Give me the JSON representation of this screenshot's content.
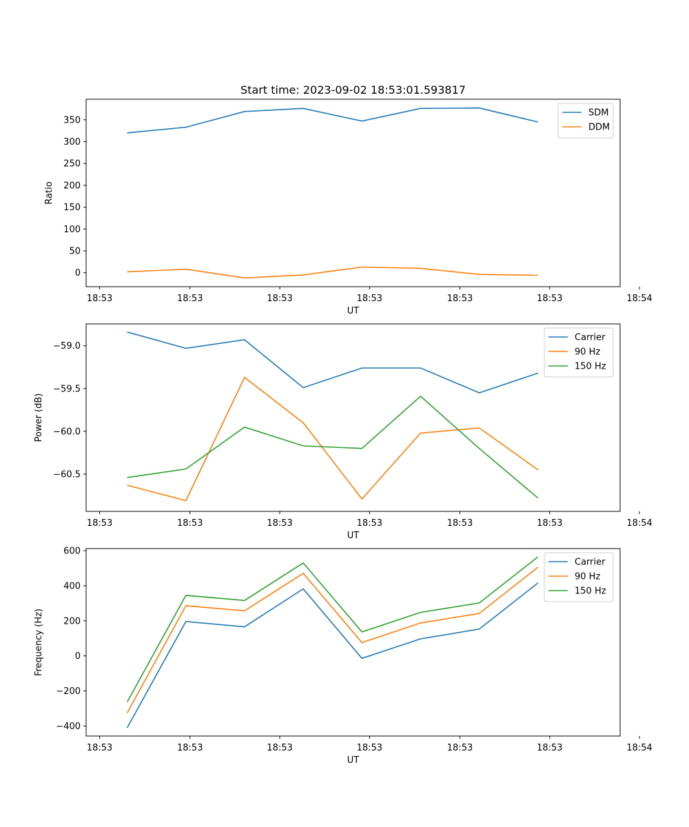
{
  "chart_data": [
    {
      "type": "line",
      "title": "Start time: 2023-09-02 18:53:01.593817",
      "xlabel": "UT",
      "ylabel": "Ratio",
      "x": [
        1,
        2,
        3,
        4,
        5,
        6,
        7,
        8
      ],
      "xlim": [
        0.3,
        9.4
      ],
      "x_ticks": [
        0.53,
        2.07,
        3.6,
        5.13,
        6.67,
        8.2,
        9.73
      ],
      "x_tick_labels": [
        "18:53",
        "18:53",
        "18:53",
        "18:53",
        "18:53",
        "18:53",
        "18:54"
      ],
      "ylim": [
        -32,
        397
      ],
      "y_ticks": [
        0,
        50,
        100,
        150,
        200,
        250,
        300,
        350
      ],
      "y_tick_labels": [
        "0",
        "50",
        "100",
        "150",
        "200",
        "250",
        "300",
        "350"
      ],
      "legend": "top-right",
      "series": [
        {
          "name": "SDM",
          "color": "#1f77b4",
          "values": [
            320,
            333,
            369,
            376,
            347,
            376,
            377,
            345
          ]
        },
        {
          "name": "DDM",
          "color": "#ff7f0e",
          "values": [
            2,
            8,
            -12,
            -5,
            13,
            10,
            -4,
            -6
          ]
        }
      ]
    },
    {
      "type": "line",
      "title": "",
      "xlabel": "UT",
      "ylabel": "Power (dB)",
      "x": [
        1,
        2,
        3,
        4,
        5,
        6,
        7,
        8
      ],
      "xlim": [
        0.3,
        9.4
      ],
      "x_ticks": [
        0.53,
        2.07,
        3.6,
        5.13,
        6.67,
        8.2,
        9.73
      ],
      "x_tick_labels": [
        "18:53",
        "18:53",
        "18:53",
        "18:53",
        "18:53",
        "18:53",
        "18:54"
      ],
      "ylim": [
        -60.935,
        -58.745
      ],
      "y_ticks": [
        -59.0,
        -59.5,
        -60.0,
        -60.5
      ],
      "y_tick_labels": [
        "−59.0",
        "−59.5",
        "−60.0",
        "−60.5"
      ],
      "legend": "top-right",
      "series": [
        {
          "name": "Carrier",
          "color": "#1f77b4",
          "values": [
            -58.84,
            -59.03,
            -58.93,
            -59.49,
            -59.26,
            -59.26,
            -59.55,
            -59.32
          ]
        },
        {
          "name": "90 Hz",
          "color": "#ff7f0e",
          "values": [
            -60.63,
            -60.81,
            -59.37,
            -59.9,
            -60.79,
            -60.02,
            -59.96,
            -60.45
          ]
        },
        {
          "name": "150 Hz",
          "color": "#2ca02c",
          "values": [
            -60.54,
            -60.44,
            -59.95,
            -60.17,
            -60.2,
            -59.59,
            -60.2,
            -60.78
          ]
        }
      ]
    },
    {
      "type": "line",
      "title": "",
      "xlabel": "UT",
      "ylabel": "Frequency (Hz)",
      "x": [
        1,
        2,
        3,
        4,
        5,
        6,
        7,
        8
      ],
      "xlim": [
        0.3,
        9.4
      ],
      "x_ticks": [
        0.53,
        2.07,
        3.6,
        5.13,
        6.67,
        8.2,
        9.73
      ],
      "x_tick_labels": [
        "18:53",
        "18:53",
        "18:53",
        "18:53",
        "18:53",
        "18:53",
        "18:54"
      ],
      "ylim": [
        -457,
        612
      ],
      "y_ticks": [
        -400,
        -200,
        0,
        200,
        400,
        600
      ],
      "y_tick_labels": [
        "−400",
        "−200",
        "0",
        "200",
        "400",
        "600"
      ],
      "legend": "top-right",
      "series": [
        {
          "name": "Carrier",
          "color": "#1f77b4",
          "values": [
            -410,
            196,
            166,
            382,
            -14,
            97,
            153,
            416
          ]
        },
        {
          "name": "90 Hz",
          "color": "#ff7f0e",
          "values": [
            -325,
            286,
            257,
            471,
            76,
            188,
            242,
            506
          ]
        },
        {
          "name": "150 Hz",
          "color": "#2ca02c",
          "values": [
            -263,
            345,
            316,
            530,
            137,
            248,
            302,
            565
          ]
        }
      ]
    }
  ]
}
